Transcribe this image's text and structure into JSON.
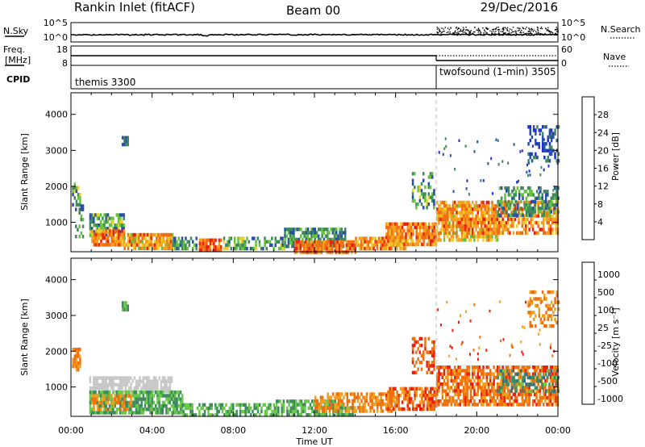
{
  "header": {
    "radar": "Rankin Inlet (fitACF)",
    "beam": "Beam 00",
    "date": "29/Dec/2016"
  },
  "summary": {
    "nsky_label": "N.Sky",
    "nsky_ticks": [
      "10^5",
      "10^0"
    ],
    "nsearch_label": "N.Search",
    "nsearch_ticks": [
      "10^5",
      "10^0"
    ],
    "freq_label": "Freq.",
    "freq_unit": "[MHz]",
    "freq_ticks": [
      "18",
      "8"
    ],
    "nave_label": "Nave",
    "nave_ticks": [
      "60",
      "0"
    ],
    "cpid_label": "CPID",
    "modes": [
      {
        "name": "themis 3300",
        "start_hour": 0
      },
      {
        "name": "twofsound (1-min) 3505",
        "start_hour": 18
      }
    ]
  },
  "chart_data": [
    {
      "type": "heatmap",
      "name": "power",
      "ylabel": "Slant Range [km]",
      "yticks": [
        "1000",
        "2000",
        "3000",
        "4000"
      ],
      "ylim": [
        180,
        4600
      ],
      "xlim": [
        0,
        24
      ],
      "xticks": [
        "00:00",
        "04:00",
        "08:00",
        "12:00",
        "16:00",
        "20:00",
        "00:00"
      ],
      "colorbar": {
        "label": "Power [dB]",
        "ticks": [
          "4",
          "8",
          "12",
          "16",
          "20",
          "24",
          "28"
        ],
        "colors": [
          "#1e2ed6",
          "#2a4fa6",
          "#3f8a5e",
          "#66c23a",
          "#e8d030",
          "#f7a020",
          "#f06e14",
          "#e82010"
        ]
      },
      "patches": [
        {
          "x": [
            0.05,
            0.4
          ],
          "y": [
            1500,
            2100
          ],
          "level": [
            1,
            4
          ],
          "density": 0.7
        },
        {
          "x": [
            0.2,
            0.6
          ],
          "y": [
            600,
            1500
          ],
          "level": [
            1,
            3
          ],
          "density": 0.4
        },
        {
          "x": [
            0.9,
            2.6
          ],
          "y": [
            600,
            1250
          ],
          "level": [
            1,
            4
          ],
          "density": 0.7
        },
        {
          "x": [
            1.0,
            2.6
          ],
          "y": [
            350,
            800
          ],
          "level": [
            4,
            7
          ],
          "density": 0.9
        },
        {
          "x": [
            2.6,
            5.0
          ],
          "y": [
            300,
            700
          ],
          "level": [
            3,
            7
          ],
          "density": 0.85
        },
        {
          "x": [
            5.0,
            6.2
          ],
          "y": [
            250,
            600
          ],
          "level": [
            1,
            3
          ],
          "density": 0.6
        },
        {
          "x": [
            6.3,
            7.4
          ],
          "y": [
            250,
            550
          ],
          "level": [
            5,
            7
          ],
          "density": 0.9
        },
        {
          "x": [
            7.5,
            10.5
          ],
          "y": [
            250,
            600
          ],
          "level": [
            1,
            4
          ],
          "density": 0.55
        },
        {
          "x": [
            10.5,
            13.5
          ],
          "y": [
            300,
            850
          ],
          "level": [
            1,
            3
          ],
          "density": 0.75
        },
        {
          "x": [
            11.0,
            14.0
          ],
          "y": [
            200,
            500
          ],
          "level": [
            5,
            7
          ],
          "density": 0.9
        },
        {
          "x": [
            14.0,
            16.5
          ],
          "y": [
            250,
            600
          ],
          "level": [
            4,
            7
          ],
          "density": 0.85
        },
        {
          "x": [
            15.5,
            18.0
          ],
          "y": [
            350,
            1000
          ],
          "level": [
            4,
            7
          ],
          "density": 0.8
        },
        {
          "x": [
            16.8,
            17.9
          ],
          "y": [
            1400,
            2400
          ],
          "level": [
            1,
            4
          ],
          "density": 0.35
        },
        {
          "x": [
            18.0,
            21.0
          ],
          "y": [
            500,
            1500
          ],
          "level": [
            3,
            6
          ],
          "density": 0.7
        },
        {
          "x": [
            18.0,
            24.0
          ],
          "y": [
            700,
            1600
          ],
          "level": [
            4,
            7
          ],
          "density": 0.65
        },
        {
          "x": [
            21.0,
            24.0
          ],
          "y": [
            1200,
            2000
          ],
          "level": [
            1,
            3
          ],
          "density": 0.5
        },
        {
          "x": [
            22.5,
            24.0
          ],
          "y": [
            2700,
            3700
          ],
          "level": [
            0,
            2
          ],
          "density": 0.35
        },
        {
          "x": [
            2.5,
            2.8
          ],
          "y": [
            3200,
            3400
          ],
          "level": [
            1,
            2
          ],
          "density": 0.8
        }
      ]
    },
    {
      "type": "heatmap",
      "name": "velocity",
      "ylabel": "Slant Range [km]",
      "yticks": [
        "1000",
        "2000",
        "3000",
        "4000"
      ],
      "ylim": [
        180,
        4600
      ],
      "xlim": [
        0,
        24
      ],
      "xlabel": "Time UT",
      "xticks": [
        "00:00",
        "04:00",
        "08:00",
        "12:00",
        "16:00",
        "20:00",
        "00:00"
      ],
      "colorbar": {
        "label": "Velocity [m s⁻¹]",
        "ticks": [
          "1000",
          "500",
          "100",
          "25",
          "-25",
          "-100",
          "-500",
          "-1000"
        ],
        "colors": [
          "#1e2ed6",
          "#2e6a90",
          "#3f8a5e",
          "#6ac84a",
          "#c8c8c8",
          "#f0a020",
          "#f07010",
          "#e8200c"
        ]
      },
      "patches": [
        {
          "x": [
            0.05,
            0.4
          ],
          "y": [
            1500,
            2100
          ],
          "level": [
            5,
            6
          ],
          "density": 0.7
        },
        {
          "x": [
            0.9,
            5.0
          ],
          "y": [
            900,
            1300
          ],
          "level": [
            4,
            4
          ],
          "density": 0.8
        },
        {
          "x": [
            0.9,
            5.5
          ],
          "y": [
            300,
            900
          ],
          "level": [
            2,
            3
          ],
          "density": 0.85
        },
        {
          "x": [
            1.0,
            3.0
          ],
          "y": [
            400,
            800
          ],
          "level": [
            5,
            6
          ],
          "density": 0.5
        },
        {
          "x": [
            5.5,
            10.0
          ],
          "y": [
            250,
            550
          ],
          "level": [
            2,
            3
          ],
          "density": 0.6
        },
        {
          "x": [
            10.0,
            14.0
          ],
          "y": [
            250,
            650
          ],
          "level": [
            2,
            3
          ],
          "density": 0.7
        },
        {
          "x": [
            12.0,
            16.0
          ],
          "y": [
            350,
            850
          ],
          "level": [
            5,
            6
          ],
          "density": 0.6
        },
        {
          "x": [
            15.5,
            18.0
          ],
          "y": [
            400,
            1000
          ],
          "level": [
            5,
            7
          ],
          "density": 0.75
        },
        {
          "x": [
            16.8,
            17.9
          ],
          "y": [
            1400,
            2400
          ],
          "level": [
            6,
            7
          ],
          "density": 0.4
        },
        {
          "x": [
            18.0,
            24.0
          ],
          "y": [
            500,
            1600
          ],
          "level": [
            5,
            7
          ],
          "density": 0.7
        },
        {
          "x": [
            21.0,
            24.0
          ],
          "y": [
            900,
            1500
          ],
          "level": [
            1,
            3
          ],
          "density": 0.35
        },
        {
          "x": [
            22.5,
            24.0
          ],
          "y": [
            2700,
            3700
          ],
          "level": [
            5,
            6
          ],
          "density": 0.35
        },
        {
          "x": [
            2.5,
            2.8
          ],
          "y": [
            3200,
            3400
          ],
          "level": [
            2,
            3
          ],
          "density": 0.8
        }
      ]
    }
  ]
}
